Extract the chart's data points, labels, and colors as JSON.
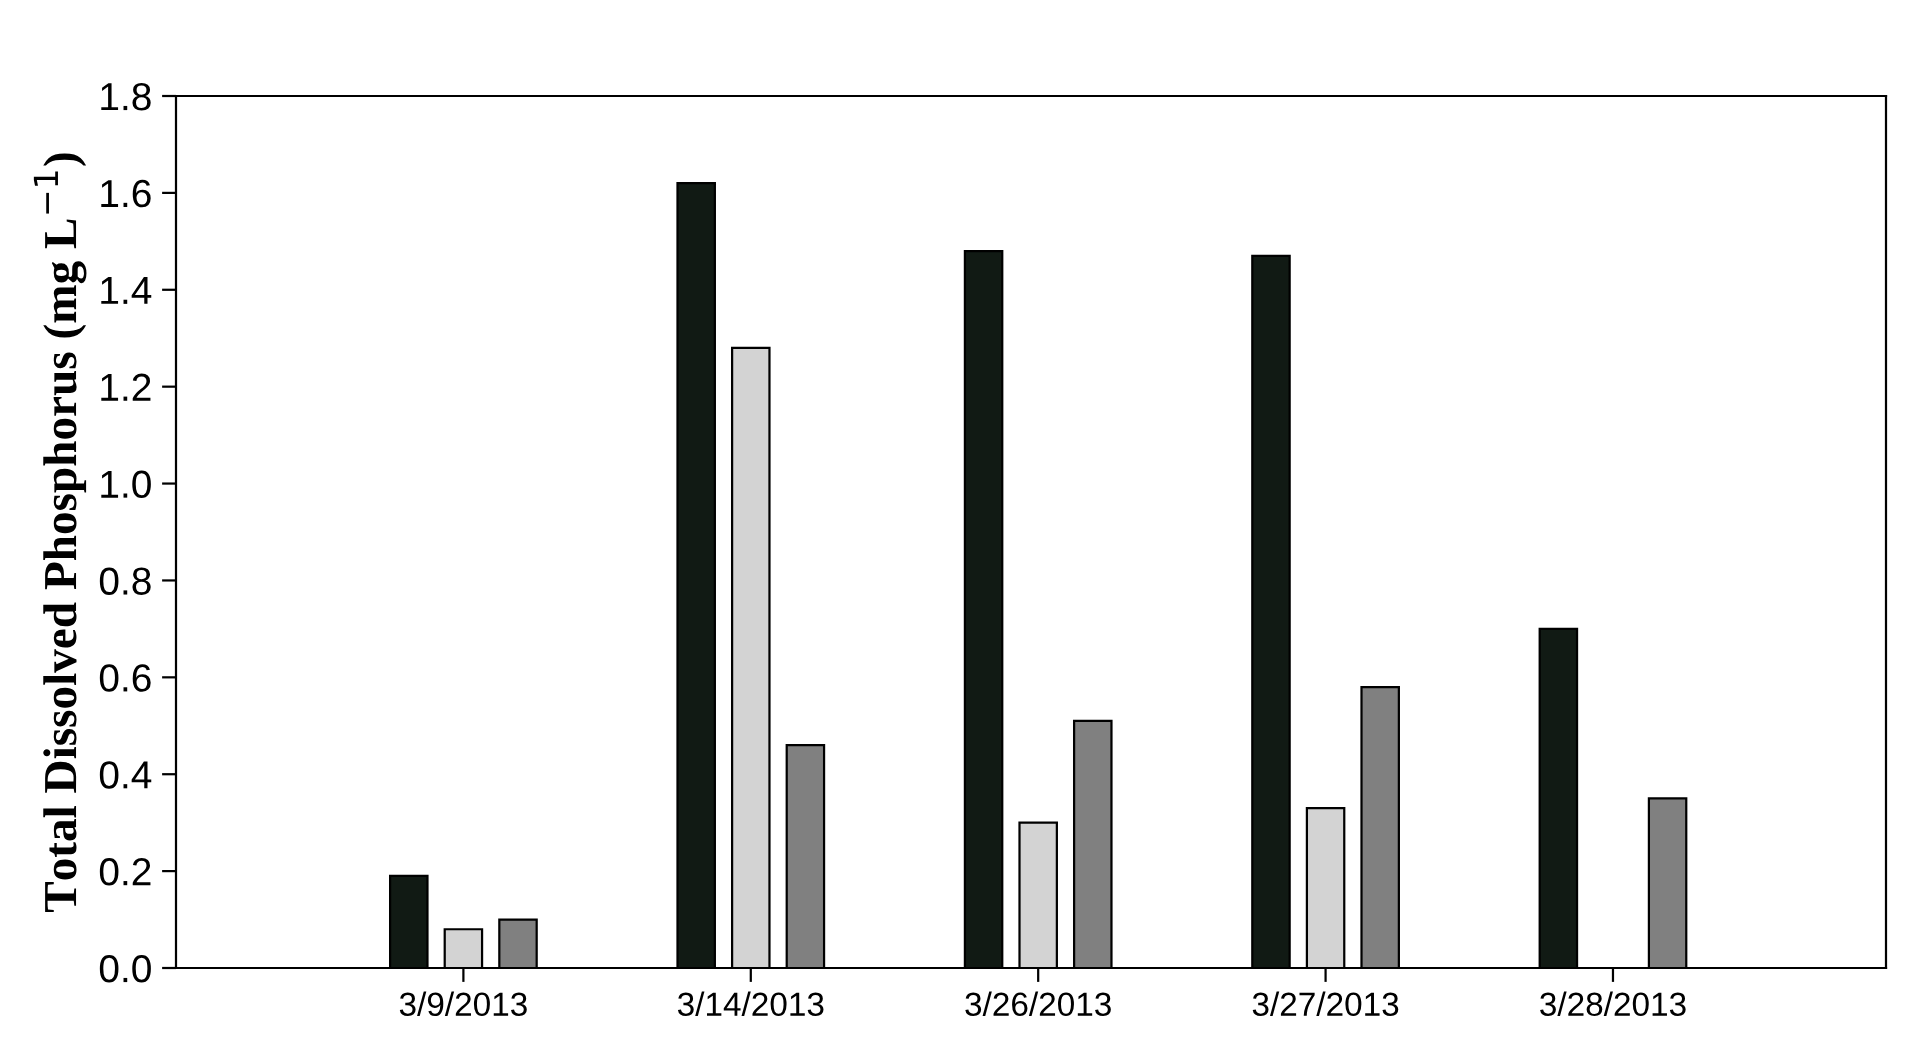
{
  "chart_data": {
    "type": "bar",
    "ylabel": "Total Dissolved Phosphorus (mg L$^{−1}$)",
    "categories": [
      "3/9/2013",
      "3/14/2013",
      "3/26/2013",
      "3/27/2013",
      "3/28/2013"
    ],
    "series": [
      {
        "color": "#111a14",
        "values": [
          0.19,
          1.62,
          1.48,
          1.47,
          0.7
        ]
      },
      {
        "color": "#d3d3d3",
        "values": [
          0.08,
          1.28,
          0.3,
          0.33,
          null
        ]
      },
      {
        "color": "#808080",
        "values": [
          0.1,
          0.46,
          0.51,
          0.58,
          0.35
        ]
      }
    ],
    "ylim": [
      0.0,
      1.8
    ],
    "yticks": [
      {
        "value": 0,
        "label": "0.0"
      },
      0.2,
      0.4,
      0.6,
      0.8,
      {
        "value": 1,
        "label": "1.0"
      },
      1.2,
      1.4,
      1.6,
      1.8
    ],
    "grid": false,
    "legend": false
  }
}
